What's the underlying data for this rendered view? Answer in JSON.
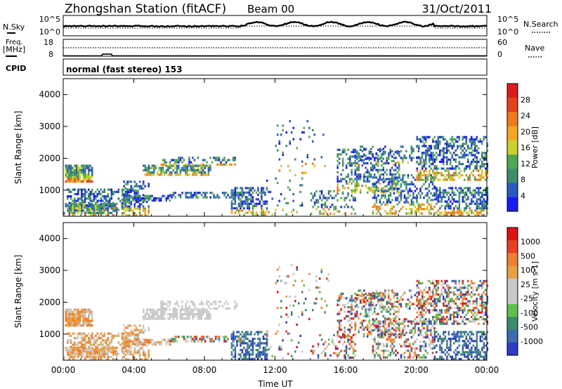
{
  "header": {
    "title": "Zhongshan Station (fitACF)",
    "beam": "Beam 00",
    "date": "31/Oct/2011"
  },
  "strip": {
    "nsky_label": "N.Sky",
    "nsky_ticks": [
      "10^5",
      "10^0"
    ],
    "nsearch_label": "N.Search",
    "nsearch_ticks": [
      "10^5",
      "10^0"
    ],
    "freq_label_1": "Freq.",
    "freq_label_2": "[MHz]",
    "freq_ticks": [
      "18",
      "8"
    ],
    "nave_label": "Nave",
    "nave_ticks": [
      "60",
      "0"
    ],
    "cpid_label": "CPID",
    "cpid_value": "normal (fast stereo) 153"
  },
  "chart_data": [
    {
      "type": "heatmap",
      "name": "power",
      "ylabel": "Slant Range [km]",
      "y_ticks": [
        1000,
        2000,
        3000,
        4000
      ],
      "ylim": [
        180,
        4500
      ],
      "x_ticks": [
        "00:00",
        "04:00",
        "08:00",
        "12:00",
        "16:00",
        "20:00",
        "00:00"
      ],
      "xlim_hours": [
        0,
        24
      ],
      "colorbar": {
        "label": "Power [dB]",
        "ticks": [
          "4",
          "8",
          "12",
          "16",
          "20",
          "24",
          "28"
        ],
        "colors": [
          "#1a1aff",
          "#2b59c3",
          "#3d8c6d",
          "#4fa84f",
          "#c9d12b",
          "#f5a623",
          "#f07a1a",
          "#e8401a",
          "#e01a1a"
        ]
      }
    },
    {
      "type": "heatmap",
      "name": "velocity",
      "ylabel": "Slant Range [km]",
      "y_ticks": [
        1000,
        2000,
        3000,
        4000
      ],
      "ylim": [
        180,
        4500
      ],
      "x_ticks": [
        "00:00",
        "04:00",
        "08:00",
        "12:00",
        "16:00",
        "20:00",
        "00:00"
      ],
      "xlabel": "Time UT",
      "xlim_hours": [
        0,
        24
      ],
      "colorbar": {
        "label": "Velocity [m s-1]",
        "ticks": [
          "1000",
          "500",
          "100",
          "25",
          "-25",
          "-100",
          "-500",
          "-1000"
        ],
        "colors": [
          "#2d3cc8",
          "#3a6cb0",
          "#3c8c6c",
          "#5cc04c",
          "#c8c8c8",
          "#c8c8c8",
          "#e8a040",
          "#f08030",
          "#e84020",
          "#e01010"
        ]
      }
    }
  ]
}
